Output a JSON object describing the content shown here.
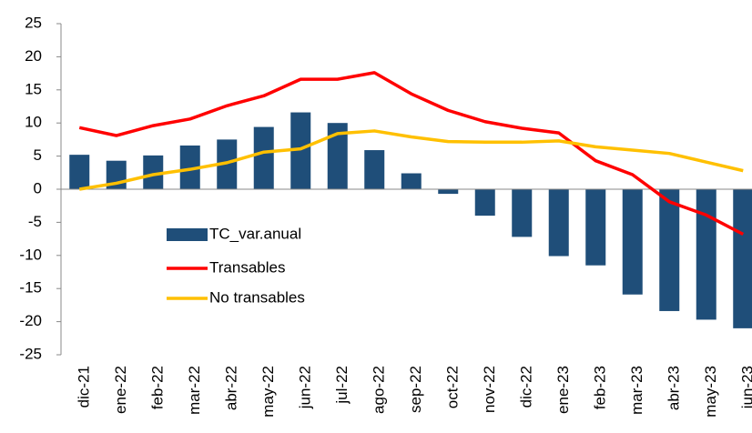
{
  "chart_data": {
    "type": "bar_line",
    "categories": [
      "dic-21",
      "ene-22",
      "feb-22",
      "mar-22",
      "abr-22",
      "may-22",
      "jun-22",
      "jul-22",
      "ago-22",
      "sep-22",
      "oct-22",
      "nov-22",
      "dic-22",
      "ene-23",
      "feb-23",
      "mar-23",
      "abr-23",
      "may-23",
      "jun-23"
    ],
    "series": [
      {
        "name": "TC_var.anual",
        "type": "bar",
        "color": "#1f4e79",
        "values": [
          5.2,
          4.3,
          5.1,
          6.6,
          7.5,
          9.4,
          11.6,
          10.0,
          5.9,
          2.4,
          -0.7,
          -4.0,
          -7.2,
          -10.1,
          -11.5,
          -15.9,
          -18.4,
          -19.7,
          -21.0
        ]
      },
      {
        "name": "Transables",
        "type": "line",
        "color": "#ff0000",
        "values": [
          9.3,
          8.1,
          9.6,
          10.6,
          12.6,
          14.1,
          16.6,
          16.6,
          17.6,
          14.4,
          11.9,
          10.2,
          9.2,
          8.5,
          4.3,
          2.2,
          -1.9,
          -3.9,
          -6.8
        ]
      },
      {
        "name": "No transables",
        "type": "line",
        "color": "#ffc000",
        "values": [
          0.0,
          0.9,
          2.2,
          3.0,
          4.0,
          5.6,
          6.1,
          8.4,
          8.8,
          7.9,
          7.2,
          7.1,
          7.1,
          7.3,
          6.4,
          5.9,
          5.4,
          4.1,
          2.8
        ]
      }
    ],
    "ylim": [
      -25,
      25
    ],
    "yticks": [
      25,
      20,
      15,
      10,
      5,
      0,
      -5,
      -10,
      -15,
      -20,
      -25
    ],
    "grid": false
  }
}
